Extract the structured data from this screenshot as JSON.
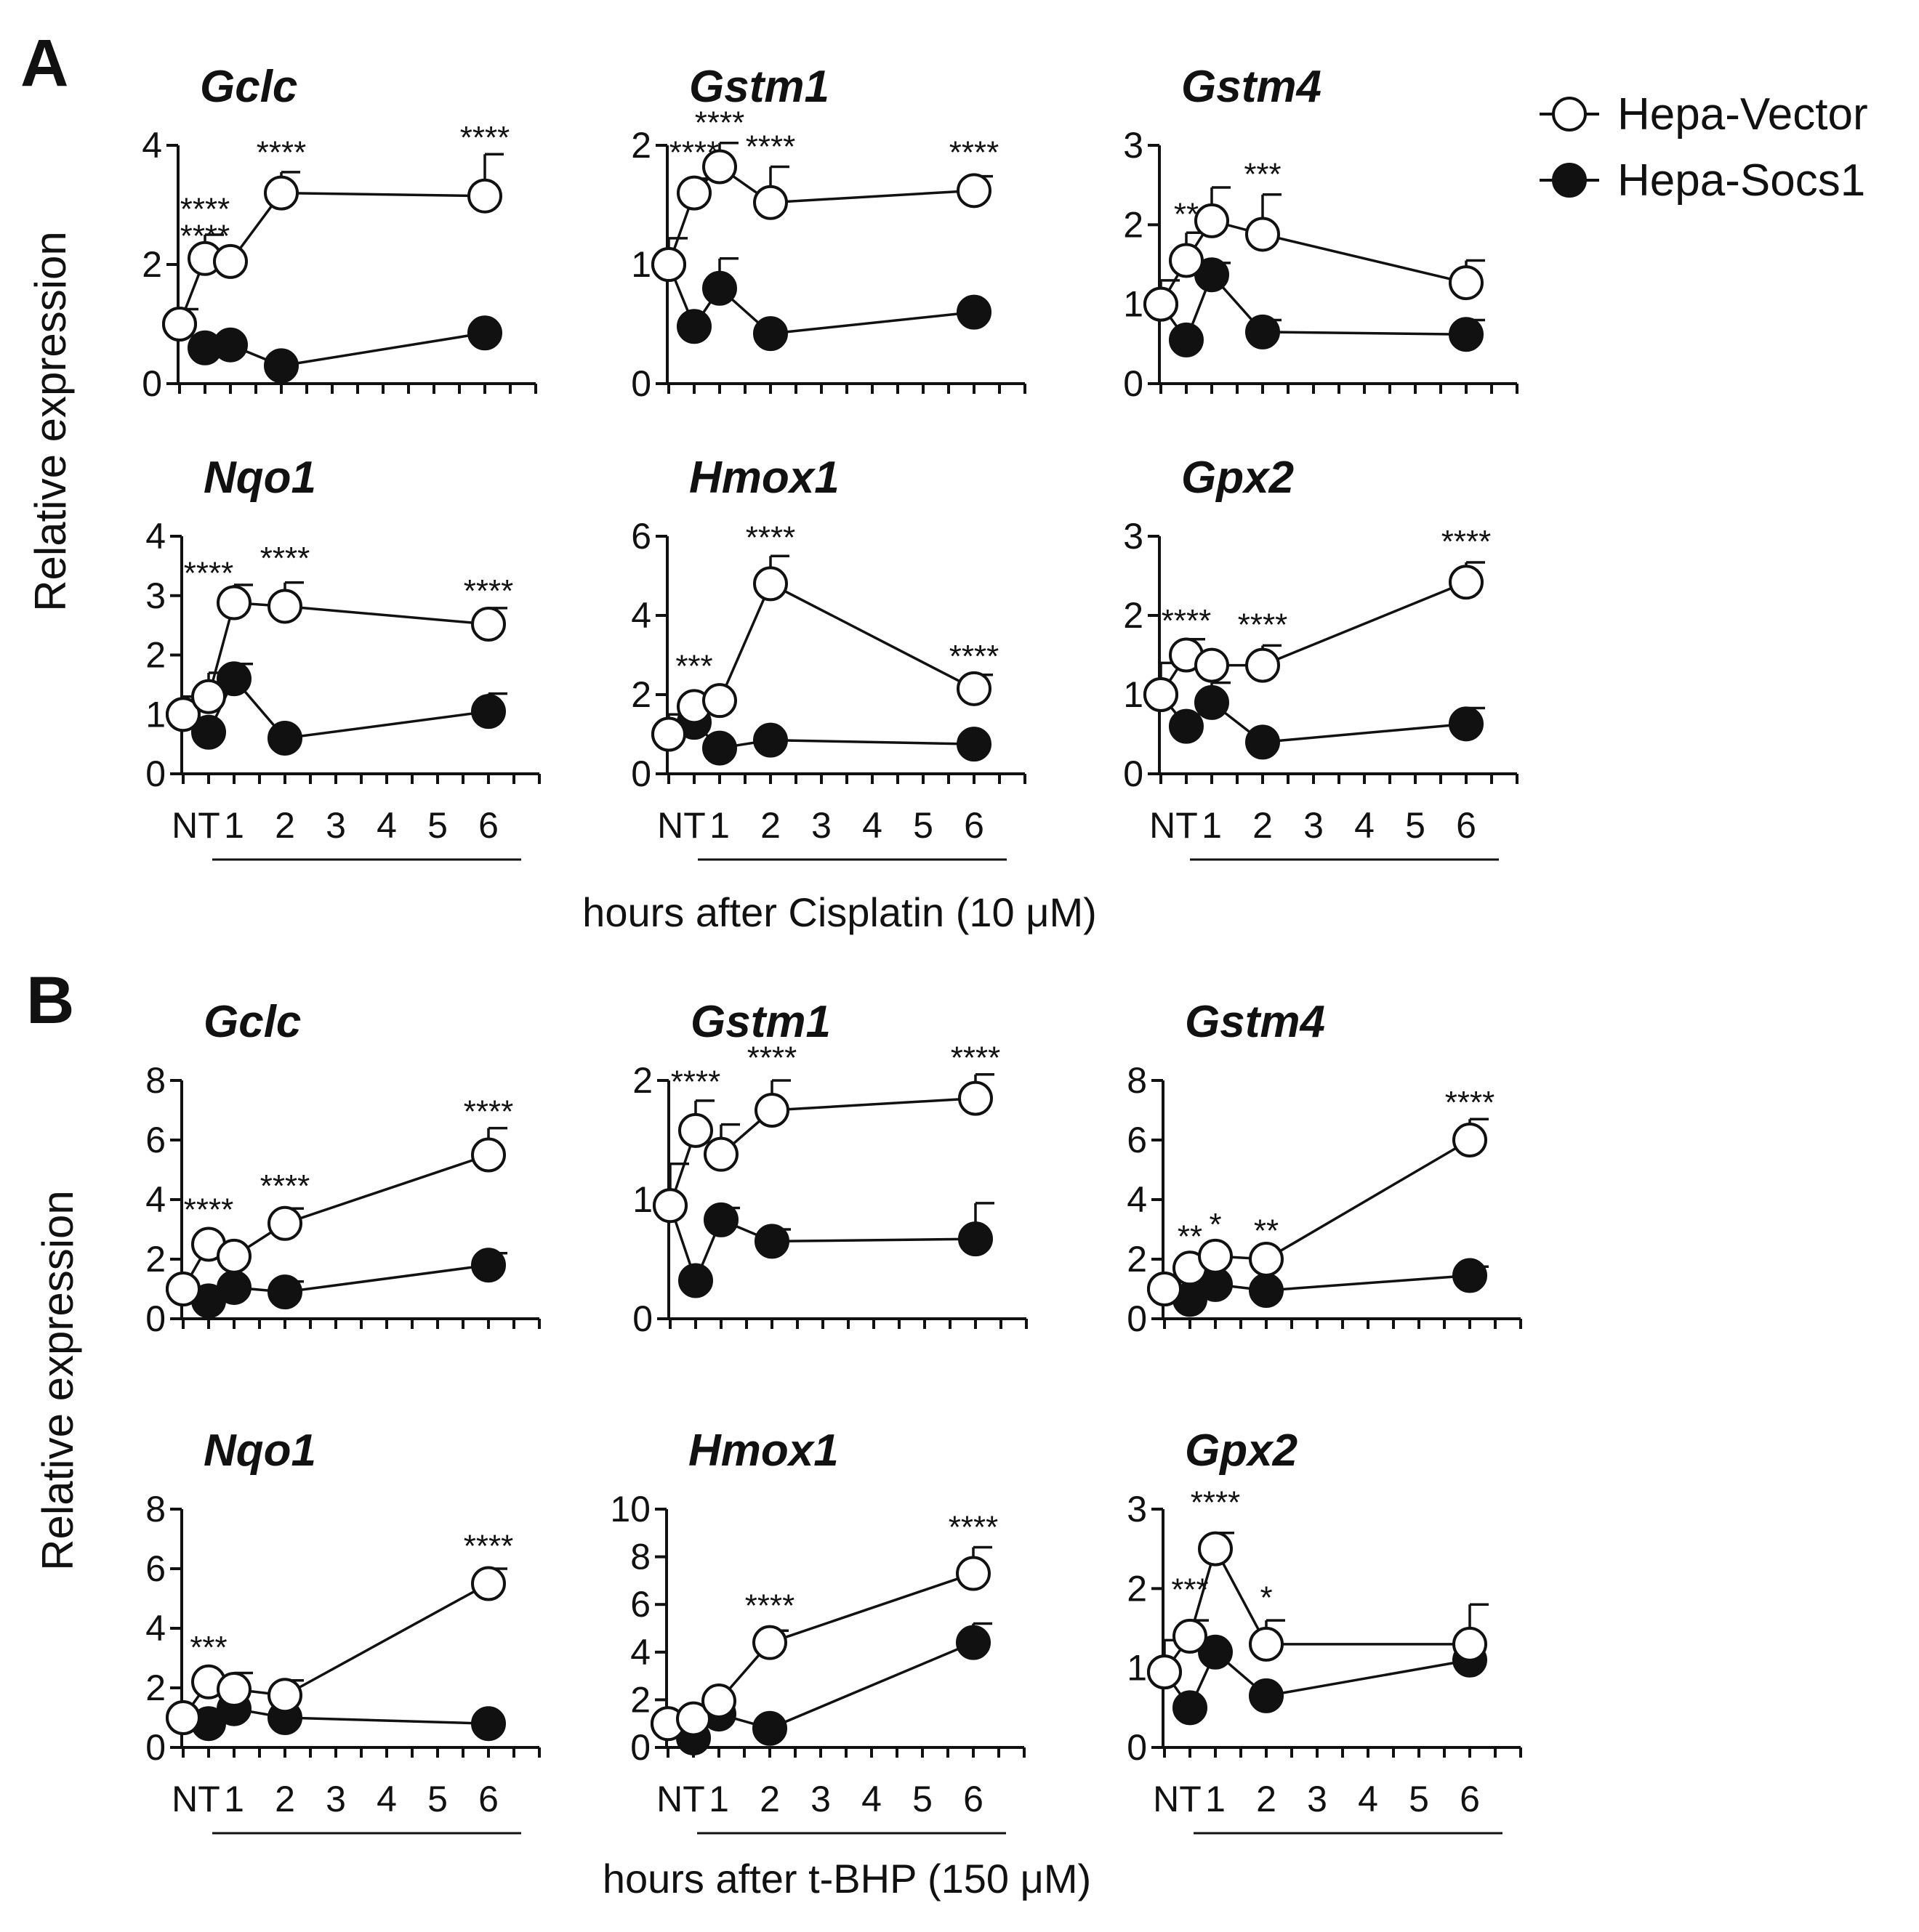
{
  "legend": {
    "open": "Hepa-Vector",
    "filled": "Hepa-Socs1"
  },
  "x_categories": [
    "NT",
    "1",
    "2",
    "3",
    "4",
    "5",
    "6"
  ],
  "chart_data": [
    {
      "panel": "A",
      "treatment_label": "hours after Cisplatin (10 μM)",
      "ylabel": "Relative expression",
      "type": "line",
      "plots": [
        {
          "title": "Gclc",
          "ylim": [
            0,
            4
          ],
          "yticks": [
            0,
            2,
            4
          ],
          "series": [
            {
              "name": "Hepa-Vector",
              "x": [
                0,
                0.5,
                1,
                2,
                6
              ],
              "y": [
                1.0,
                2.1,
                2.05,
                3.2,
                3.15
              ],
              "err": [
                0.25,
                0.4,
                0.0,
                0.35,
                0.7
              ]
            },
            {
              "name": "Hepa-Socs1",
              "x": [
                0,
                0.5,
                1,
                2,
                6
              ],
              "y": [
                1.0,
                0.6,
                0.65,
                0.3,
                0.85
              ],
              "err": [
                0,
                0,
                0,
                0,
                0
              ]
            }
          ],
          "annotations": [
            {
              "x": 0.5,
              "y_above": 2.3,
              "label": "****"
            },
            {
              "x": 0.5,
              "y_above": 2.75,
              "label": "****"
            },
            {
              "x": 2,
              "y_above": 3.7,
              "label": "****"
            },
            {
              "x": 6,
              "y_above": 3.95,
              "label": "****"
            }
          ]
        },
        {
          "title": "Gstm1",
          "ylim": [
            0,
            2
          ],
          "yticks": [
            0,
            1,
            2
          ],
          "series": [
            {
              "name": "Hepa-Vector",
              "x": [
                0,
                0.5,
                1,
                2,
                6
              ],
              "y": [
                1.0,
                1.6,
                1.82,
                1.52,
                1.62
              ],
              "err": [
                0.22,
                0.12,
                0.2,
                0.3,
                0.12
              ]
            },
            {
              "name": "Hepa-Socs1",
              "x": [
                0,
                0.5,
                1,
                2,
                6
              ],
              "y": [
                1.0,
                0.48,
                0.8,
                0.42,
                0.6
              ],
              "err": [
                0,
                0,
                0.25,
                0,
                0
              ]
            }
          ],
          "annotations": [
            {
              "x": 0.5,
              "y_above": 1.85,
              "label": "****"
            },
            {
              "x": 1,
              "y_above": 2.1,
              "label": "****"
            },
            {
              "x": 2,
              "y_above": 1.9,
              "label": "****"
            },
            {
              "x": 6,
              "y_above": 1.85,
              "label": "****"
            }
          ]
        },
        {
          "title": "Gstm4",
          "ylim": [
            0,
            3
          ],
          "yticks": [
            0,
            1,
            2,
            3
          ],
          "series": [
            {
              "name": "Hepa-Vector",
              "x": [
                0,
                0.5,
                1,
                2,
                6
              ],
              "y": [
                1.0,
                1.55,
                2.05,
                1.88,
                1.27
              ],
              "err": [
                0.3,
                0.35,
                0.42,
                0.5,
                0.28
              ]
            },
            {
              "name": "Hepa-Socs1",
              "x": [
                0,
                0.5,
                1,
                2,
                6
              ],
              "y": [
                1.0,
                0.55,
                1.37,
                0.65,
                0.62
              ],
              "err": [
                0,
                0,
                0.15,
                0.15,
                0.18
              ]
            }
          ],
          "annotations": [
            {
              "x": 0.5,
              "y_above": 2.0,
              "label": "**"
            },
            {
              "x": 2,
              "y_above": 2.5,
              "label": "***"
            }
          ]
        },
        {
          "title": "Nqo1",
          "ylim": [
            0,
            4
          ],
          "yticks": [
            0,
            1,
            2,
            3,
            4
          ],
          "series": [
            {
              "name": "Hepa-Vector",
              "x": [
                0,
                0.5,
                1,
                2,
                6
              ],
              "y": [
                1.0,
                1.3,
                2.88,
                2.82,
                2.52
              ],
              "err": [
                0.3,
                0.4,
                0.3,
                0.4,
                0.27
              ]
            },
            {
              "name": "Hepa-Socs1",
              "x": [
                0,
                0.5,
                1,
                2,
                6
              ],
              "y": [
                1.0,
                0.7,
                1.6,
                0.6,
                1.05
              ],
              "err": [
                0,
                0,
                0.25,
                0,
                0.3
              ]
            }
          ],
          "annotations": [
            {
              "x": 0.5,
              "y_above": 3.2,
              "label": "****"
            },
            {
              "x": 2,
              "y_above": 3.45,
              "label": "****"
            },
            {
              "x": 6,
              "y_above": 2.9,
              "label": "****"
            }
          ]
        },
        {
          "title": "Hmox1",
          "ylim": [
            0,
            6
          ],
          "yticks": [
            0,
            2,
            4,
            6
          ],
          "series": [
            {
              "name": "Hepa-Vector",
              "x": [
                0,
                0.5,
                1,
                2,
                6
              ],
              "y": [
                1.0,
                1.7,
                1.85,
                4.8,
                2.15
              ],
              "err": [
                0.5,
                0.0,
                0.0,
                0.7,
                0.35
              ]
            },
            {
              "name": "Hepa-Socs1",
              "x": [
                0,
                0.5,
                1,
                2,
                6
              ],
              "y": [
                1.0,
                1.3,
                0.65,
                0.85,
                0.75
              ],
              "err": [
                0,
                0,
                0,
                0,
                0
              ]
            }
          ],
          "annotations": [
            {
              "x": 0.5,
              "y_above": 2.45,
              "label": "***"
            },
            {
              "x": 2,
              "y_above": 5.7,
              "label": "****"
            },
            {
              "x": 6,
              "y_above": 2.7,
              "label": "****"
            }
          ]
        },
        {
          "title": "Gpx2",
          "ylim": [
            0,
            3
          ],
          "yticks": [
            0,
            1,
            2,
            3
          ],
          "series": [
            {
              "name": "Hepa-Vector",
              "x": [
                0,
                0.5,
                1,
                2,
                6
              ],
              "y": [
                1.0,
                1.5,
                1.37,
                1.37,
                2.42
              ],
              "err": [
                0.4,
                0.2,
                0.0,
                0.25,
                0.25
              ]
            },
            {
              "name": "Hepa-Socs1",
              "x": [
                0,
                0.5,
                1,
                2,
                6
              ],
              "y": [
                1.0,
                0.6,
                0.9,
                0.4,
                0.63
              ],
              "err": [
                0,
                0,
                0.25,
                0,
                0.2
              ]
            }
          ],
          "annotations": [
            {
              "x": 0.5,
              "y_above": 1.8,
              "label": "****"
            },
            {
              "x": 2,
              "y_above": 1.75,
              "label": "****"
            },
            {
              "x": 6,
              "y_above": 2.8,
              "label": "****"
            }
          ]
        }
      ]
    },
    {
      "panel": "B",
      "treatment_label": "hours after t-BHP (150 μM)",
      "ylabel": "Relative expression",
      "type": "line",
      "plots": [
        {
          "title": "Gclc",
          "ylim": [
            0,
            8
          ],
          "yticks": [
            0,
            2,
            4,
            6,
            8
          ],
          "series": [
            {
              "name": "Hepa-Vector",
              "x": [
                0,
                0.5,
                1,
                2,
                6
              ],
              "y": [
                1.0,
                2.5,
                2.1,
                3.2,
                5.5
              ],
              "err": [
                0,
                0,
                0,
                0.5,
                0.9
              ]
            },
            {
              "name": "Hepa-Socs1",
              "x": [
                0,
                0.5,
                1,
                2,
                6
              ],
              "y": [
                1.0,
                0.6,
                1.05,
                0.9,
                1.8
              ],
              "err": [
                0,
                0,
                0,
                0.35,
                0.4
              ]
            }
          ],
          "annotations": [
            {
              "x": 0.5,
              "y_above": 3.3,
              "label": "****"
            },
            {
              "x": 2,
              "y_above": 4.1,
              "label": "****"
            },
            {
              "x": 6,
              "y_above": 6.6,
              "label": "****"
            }
          ]
        },
        {
          "title": "Gstm1",
          "ylim": [
            0,
            2
          ],
          "yticks": [
            0,
            1,
            2
          ],
          "series": [
            {
              "name": "Hepa-Vector",
              "x": [
                0,
                0.5,
                1,
                2,
                6
              ],
              "y": [
                0.95,
                1.58,
                1.38,
                1.75,
                1.85
              ],
              "err": [
                0.35,
                0.25,
                0.25,
                0.25,
                0.2
              ]
            },
            {
              "name": "Hepa-Socs1",
              "x": [
                0,
                0.5,
                1,
                2,
                6
              ],
              "y": [
                0.95,
                0.32,
                0.83,
                0.65,
                0.67
              ],
              "err": [
                0,
                0,
                0.1,
                0.1,
                0.3
              ]
            }
          ],
          "annotations": [
            {
              "x": 0.5,
              "y_above": 1.9,
              "label": "****"
            },
            {
              "x": 2,
              "y_above": 2.1,
              "label": "****"
            },
            {
              "x": 6,
              "y_above": 2.1,
              "label": "****"
            }
          ]
        },
        {
          "title": "Gstm4",
          "ylim": [
            0,
            8
          ],
          "yticks": [
            0,
            2,
            4,
            6,
            8
          ],
          "series": [
            {
              "name": "Hepa-Vector",
              "x": [
                0,
                0.5,
                1,
                2,
                6
              ],
              "y": [
                1.0,
                1.7,
                2.1,
                2.0,
                6.0
              ],
              "err": [
                0,
                0,
                0,
                0,
                0.7
              ]
            },
            {
              "name": "Hepa-Socs1",
              "x": [
                0,
                0.5,
                1,
                2,
                6
              ],
              "y": [
                1.0,
                0.65,
                1.15,
                0.95,
                1.45
              ],
              "err": [
                0,
                0,
                0,
                0,
                0.3
              ]
            }
          ],
          "annotations": [
            {
              "x": 0.5,
              "y_above": 2.4,
              "label": "**"
            },
            {
              "x": 1,
              "y_above": 2.8,
              "label": "*"
            },
            {
              "x": 2,
              "y_above": 2.6,
              "label": "**"
            },
            {
              "x": 6,
              "y_above": 6.9,
              "label": "****"
            }
          ]
        },
        {
          "title": "Nqo1",
          "ylim": [
            0,
            8
          ],
          "yticks": [
            0,
            2,
            4,
            6,
            8
          ],
          "series": [
            {
              "name": "Hepa-Vector",
              "x": [
                0,
                0.5,
                1,
                2,
                6
              ],
              "y": [
                1.0,
                2.2,
                1.95,
                1.75,
                5.5
              ],
              "err": [
                0,
                0,
                0.55,
                0.5,
                0.5
              ]
            },
            {
              "name": "Hepa-Socs1",
              "x": [
                0,
                0.5,
                1,
                2,
                6
              ],
              "y": [
                1.0,
                0.8,
                1.3,
                1.0,
                0.8
              ],
              "err": [
                0,
                0,
                0,
                0,
                0
              ]
            }
          ],
          "annotations": [
            {
              "x": 0.5,
              "y_above": 3.0,
              "label": "***"
            },
            {
              "x": 6,
              "y_above": 6.4,
              "label": "****"
            }
          ]
        },
        {
          "title": "Hmox1",
          "ylim": [
            0,
            10
          ],
          "yticks": [
            0,
            2,
            4,
            6,
            8,
            10
          ],
          "series": [
            {
              "name": "Hepa-Vector",
              "x": [
                0,
                0.5,
                1,
                2,
                6
              ],
              "y": [
                1.0,
                1.2,
                1.95,
                4.4,
                7.3
              ],
              "err": [
                0,
                0,
                0,
                0.5,
                1.1
              ]
            },
            {
              "name": "Hepa-Socs1",
              "x": [
                0,
                0.5,
                1,
                2,
                6
              ],
              "y": [
                1.0,
                0.4,
                1.4,
                0.8,
                4.4
              ],
              "err": [
                0,
                0,
                0,
                0,
                0.8
              ]
            }
          ],
          "annotations": [
            {
              "x": 2,
              "y_above": 5.5,
              "label": "****"
            },
            {
              "x": 6,
              "y_above": 8.8,
              "label": "****"
            }
          ]
        },
        {
          "title": "Gpx2",
          "ylim": [
            0,
            3
          ],
          "yticks": [
            0,
            1,
            2,
            3
          ],
          "series": [
            {
              "name": "Hepa-Vector",
              "x": [
                0,
                0.5,
                1,
                2,
                6
              ],
              "y": [
                0.95,
                1.4,
                2.5,
                1.3,
                1.3
              ],
              "err": [
                0.4,
                0.2,
                0.2,
                0.3,
                0.5
              ]
            },
            {
              "name": "Hepa-Socs1",
              "x": [
                0,
                0.5,
                1,
                2,
                6
              ],
              "y": [
                0.95,
                0.5,
                1.2,
                0.65,
                1.1
              ],
              "err": [
                0,
                0,
                0,
                0,
                0
              ]
            }
          ],
          "annotations": [
            {
              "x": 0.5,
              "y_above": 1.85,
              "label": "***"
            },
            {
              "x": 1,
              "y_above": 2.95,
              "label": "****"
            },
            {
              "x": 2,
              "y_above": 1.75,
              "label": "*"
            }
          ]
        }
      ]
    }
  ]
}
